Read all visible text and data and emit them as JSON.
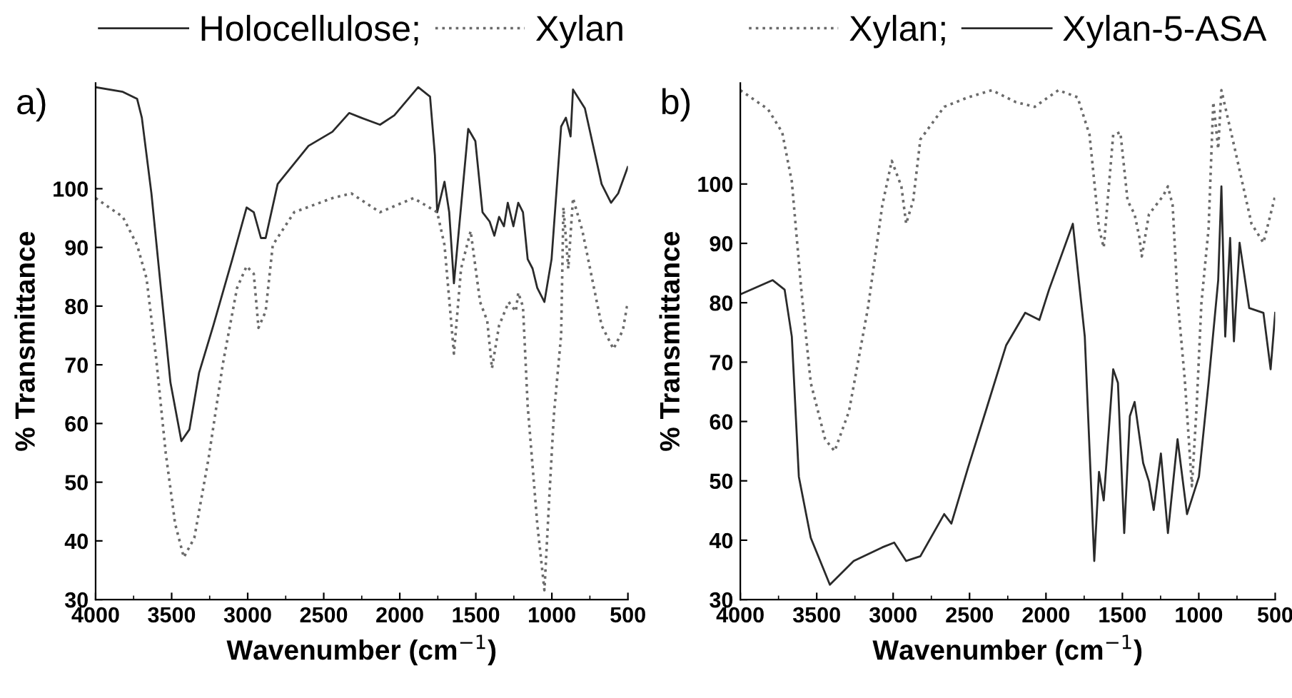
{
  "chart_data": [
    {
      "type": "line",
      "title": "a)",
      "xlabel": "Wavenumber (cm$^{−1}$)",
      "ylabel": "% Transmittance",
      "legend": "top",
      "grid": false,
      "xlim": [
        4000,
        500
      ],
      "ylim": [
        30,
        118
      ],
      "xticks": [
        4000,
        3500,
        3000,
        2500,
        2000,
        1500,
        1000,
        500
      ],
      "yticks": [
        30,
        40,
        50,
        60,
        70,
        80,
        90,
        100
      ],
      "series": [
        {
          "name": "Holocellulose;",
          "color": "#2a2a2a",
          "line_style": "solid",
          "x": [
            4000,
            3821,
            3727,
            3696,
            3633,
            3571,
            3508,
            3436,
            3383,
            3320,
            3226,
            3101,
            3007,
            2960,
            2913,
            2882,
            2803,
            2600,
            2443,
            2333,
            2255,
            2130,
            2036,
            1879,
            1801,
            1769,
            1754,
            1706,
            1675,
            1644,
            1612,
            1550,
            1503,
            1456,
            1409,
            1378,
            1347,
            1315,
            1290,
            1253,
            1221,
            1190,
            1159,
            1127,
            1096,
            1049,
            1002,
            939,
            908,
            877,
            861,
            783,
            673,
            611,
            564,
            501
          ],
          "values": [
            117.3,
            116.5,
            115.3,
            112.1,
            99.2,
            83.1,
            67.0,
            57.0,
            59.0,
            68.6,
            76.7,
            88.0,
            96.8,
            96.0,
            91.6,
            91.6,
            100.8,
            107.3,
            109.7,
            112.9,
            112.1,
            110.9,
            112.5,
            117.3,
            115.7,
            105.7,
            96.0,
            101.2,
            96.0,
            83.9,
            92.8,
            110.2,
            108.1,
            96.0,
            94.4,
            92.0,
            95.2,
            93.6,
            97.6,
            93.6,
            97.6,
            96.0,
            88.0,
            86.4,
            83.1,
            80.7,
            88.0,
            110.6,
            112.1,
            108.9,
            116.9,
            113.7,
            100.8,
            97.6,
            99.2,
            103.7
          ]
        },
        {
          "name": "Xylan",
          "color": "#6a6a6a",
          "line_style": "dotted",
          "x": [
            4000,
            3821,
            3727,
            3665,
            3602,
            3539,
            3477,
            3420,
            3351,
            3257,
            3163,
            3070,
            3007,
            2960,
            2929,
            2882,
            2835,
            2694,
            2443,
            2318,
            2130,
            1910,
            1754,
            1706,
            1644,
            1597,
            1534,
            1472,
            1425,
            1394,
            1347,
            1284,
            1237,
            1221,
            1190,
            1159,
            1096,
            1049,
            1018,
            987,
            939,
            924,
            892,
            861,
            799,
            673,
            595,
            533,
            501
          ],
          "values": [
            98.4,
            95.2,
            90.4,
            84.7,
            71.1,
            55.0,
            42.9,
            37.2,
            40.5,
            54.1,
            70.2,
            83.1,
            86.8,
            85.5,
            76.3,
            79.1,
            90.4,
            96.0,
            98.4,
            99.2,
            96.0,
            98.4,
            96.0,
            90.4,
            71.9,
            86.4,
            92.8,
            80.7,
            77.5,
            69.4,
            76.7,
            80.7,
            79.1,
            82.3,
            79.9,
            63.0,
            42.9,
            31.6,
            46.9,
            61.4,
            75.1,
            96.8,
            86.4,
            98.4,
            92.8,
            76.7,
            72.7,
            75.9,
            80.7
          ]
        }
      ]
    },
    {
      "type": "line",
      "title": "b)",
      "xlabel": "Wavenumber (cm$^{−1}$)",
      "ylabel": "% Transmittance",
      "legend": "top",
      "grid": false,
      "xlim": [
        4000,
        500
      ],
      "ylim": [
        30,
        117
      ],
      "xticks": [
        4000,
        3500,
        3000,
        2500,
        2000,
        1500,
        1000,
        500
      ],
      "yticks": [
        30,
        40,
        50,
        60,
        70,
        80,
        90,
        100
      ],
      "series": [
        {
          "name": "Xylan;",
          "color": "#6a6a6a",
          "line_style": "dotted",
          "x": [
            4000,
            3819,
            3726,
            3663,
            3601,
            3539,
            3445,
            3383,
            3289,
            3165,
            3071,
            3009,
            2946,
            2915,
            2869,
            2822,
            2666,
            2510,
            2354,
            2198,
            2074,
            1918,
            1793,
            1715,
            1653,
            1622,
            1560,
            1513,
            1466,
            1420,
            1388,
            1373,
            1326,
            1233,
            1202,
            1171,
            1139,
            1092,
            1045,
            1014,
            983,
            936,
            905,
            873,
            852,
            764,
            655,
            577,
            500
          ],
          "values": [
            115.8,
            112.6,
            108.7,
            100.4,
            82.2,
            66.5,
            57.0,
            55.0,
            61.7,
            79.1,
            96.4,
            103.9,
            99.6,
            93.3,
            97.2,
            107.5,
            113.0,
            114.6,
            115.8,
            113.8,
            113.0,
            115.8,
            114.6,
            108.3,
            92.5,
            89.3,
            108.3,
            108.7,
            97.2,
            94.9,
            90.9,
            87.8,
            94.9,
            98.0,
            99.6,
            96.4,
            80.7,
            67.2,
            49.1,
            62.5,
            79.9,
            92.5,
            113.8,
            105.9,
            115.8,
            105.9,
            93.3,
            90.1,
            98.0
          ]
        },
        {
          "name": "Xylan-5-ASA",
          "color": "#2a2a2a",
          "line_style": "solid",
          "x": [
            4000,
            3788,
            3710,
            3663,
            3617,
            3539,
            3414,
            3258,
            3071,
            2993,
            2915,
            2822,
            2666,
            2619,
            2510,
            2385,
            2261,
            2136,
            2043,
            1980,
            1824,
            1746,
            1715,
            1684,
            1653,
            1622,
            1560,
            1529,
            1488,
            1451,
            1420,
            1364,
            1326,
            1295,
            1248,
            1202,
            1139,
            1077,
            999,
            936,
            873,
            852,
            827,
            795,
            770,
            733,
            670,
            577,
            530,
            500
          ],
          "values": [
            81.4,
            83.8,
            82.2,
            74.3,
            50.7,
            40.4,
            32.5,
            36.5,
            38.8,
            39.6,
            36.5,
            37.3,
            44.4,
            42.8,
            52.2,
            62.5,
            72.8,
            78.3,
            77.1,
            82.2,
            93.3,
            74.3,
            55.4,
            36.5,
            51.5,
            46.7,
            68.8,
            66.5,
            41.2,
            60.9,
            63.3,
            53.0,
            49.9,
            45.1,
            54.6,
            41.2,
            57.0,
            44.4,
            50.7,
            66.5,
            83.8,
            99.6,
            74.3,
            90.9,
            73.5,
            90.1,
            79.1,
            78.3,
            68.8,
            78.3
          ]
        }
      ]
    }
  ]
}
